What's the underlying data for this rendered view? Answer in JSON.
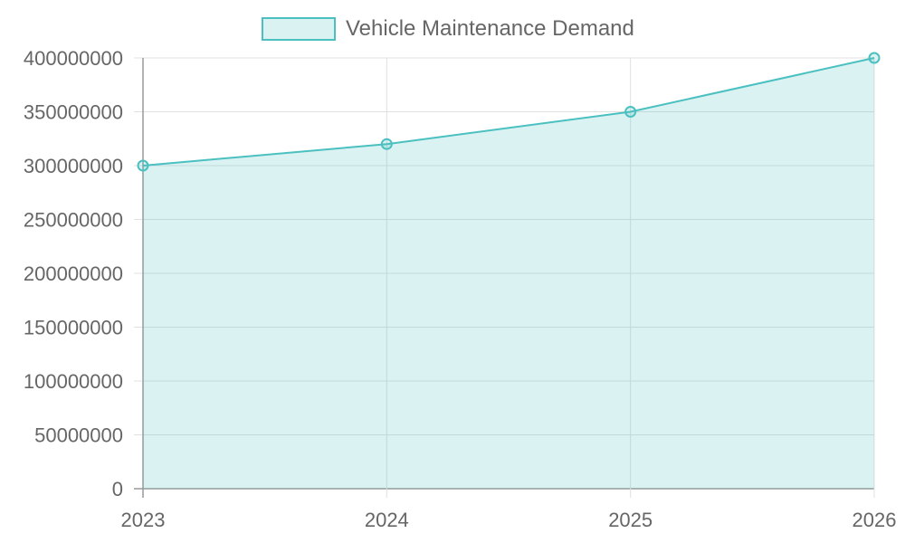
{
  "chart_data": {
    "type": "area",
    "title": "",
    "xlabel": "",
    "ylabel": "",
    "categories": [
      "2023",
      "2024",
      "2025",
      "2026"
    ],
    "series": [
      {
        "name": "Vehicle Maintenance Demand",
        "values": [
          300000000,
          320000000,
          350000000,
          400000000
        ]
      }
    ],
    "ylim": [
      0,
      400000000
    ],
    "yticks": [
      0,
      50000000,
      100000000,
      150000000,
      200000000,
      250000000,
      300000000,
      350000000,
      400000000
    ],
    "grid": true,
    "legend": "top",
    "colors": {
      "line": "#4bc0c0",
      "fill": "rgba(75,192,192,0.2)",
      "grid": "#e0e0e0",
      "axis": "#999999",
      "text": "#666666"
    }
  }
}
